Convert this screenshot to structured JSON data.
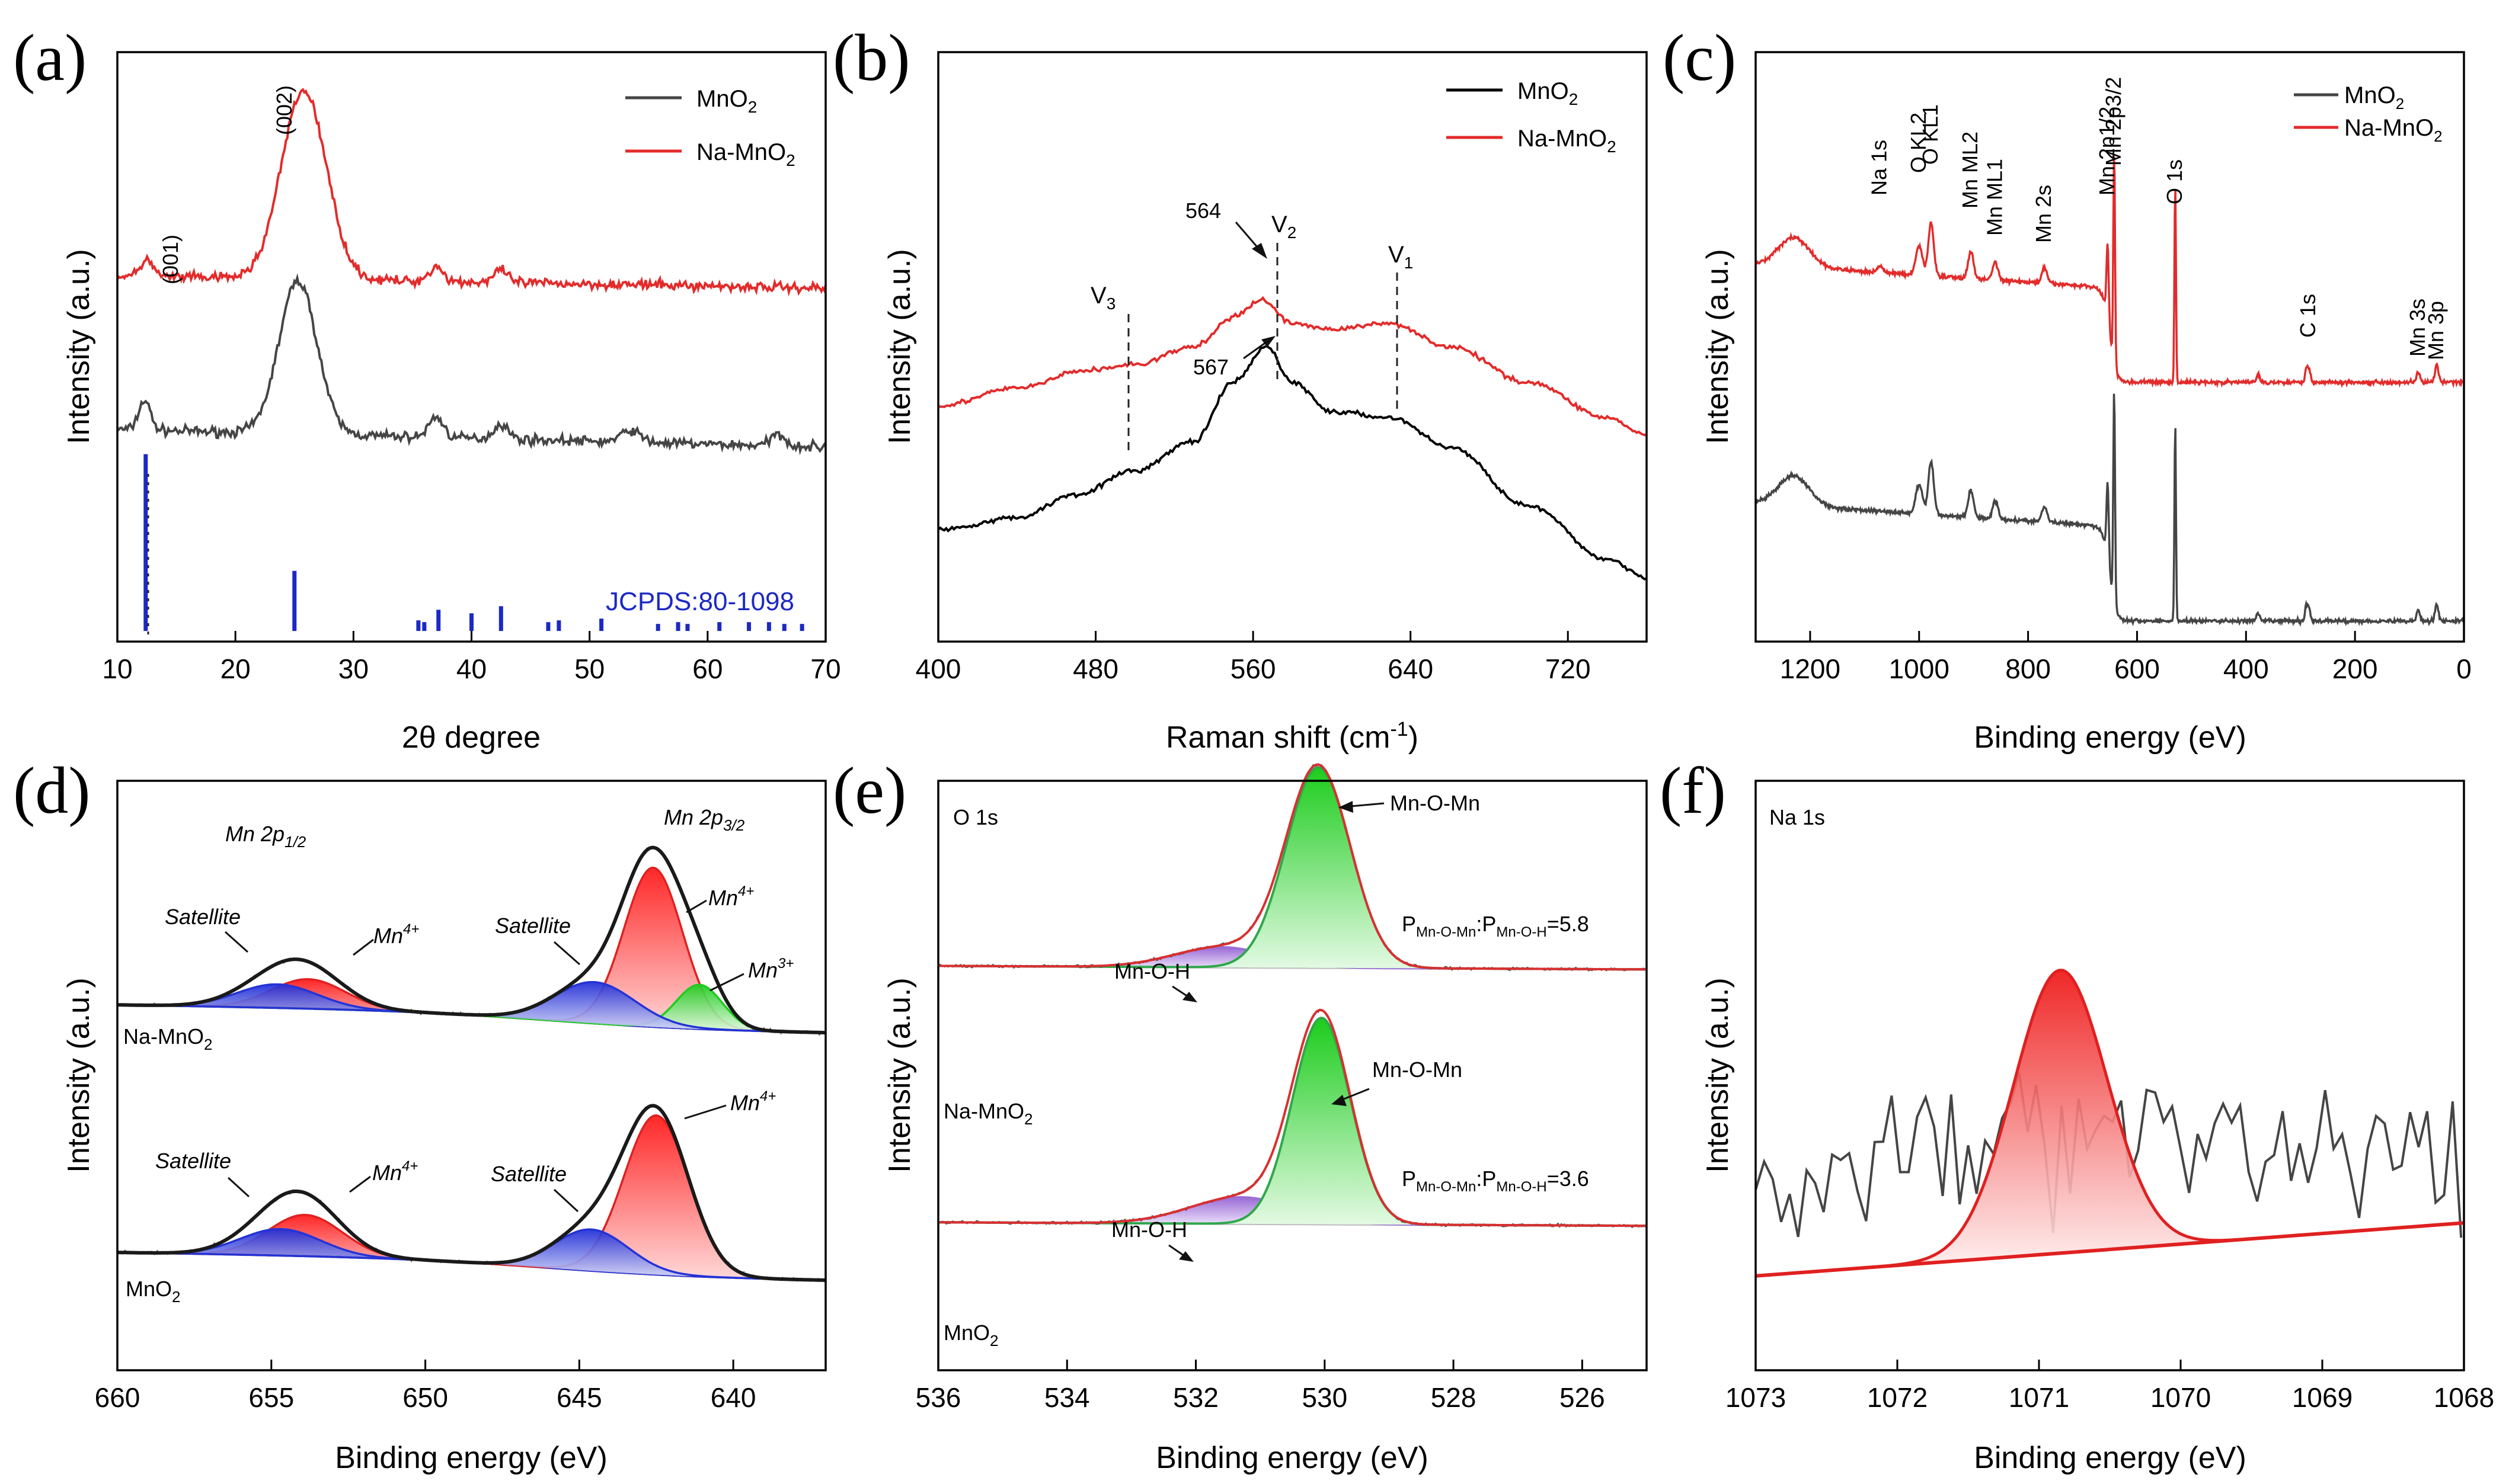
{
  "panel_labels": [
    "(a)",
    "(b)",
    "(c)",
    "(d)",
    "(e)",
    "(f)"
  ],
  "colors": {
    "mno2": "#454545",
    "na_mno2": "#e32b2b",
    "black": "#000000",
    "reference": "#1c29c4",
    "fit_red": "#e02020",
    "fit_blue": "#2433d6",
    "fit_green": "#1fcc1f",
    "fit_purple": "#9b6fd6",
    "envelope": "#1a1a1a"
  },
  "chart_data": [
    {
      "id": "a",
      "type": "line",
      "title": "",
      "xlabel": "2θ degree",
      "ylabel": "Intensity (a.u.)",
      "xlim": [
        10,
        70
      ],
      "xticks": [
        10,
        20,
        30,
        40,
        50,
        60,
        70
      ],
      "legend": {
        "position": "top-right",
        "entries": [
          {
            "base": "MnO",
            "sub": "2",
            "color": "#454545"
          },
          {
            "base": "Na-MnO",
            "sub": "2",
            "color": "#e32b2b"
          }
        ]
      },
      "annotations": [
        "(001)",
        "(002)",
        "JCPDS:80-1098"
      ],
      "series": [
        {
          "name": "MnO2",
          "color": "#454545",
          "baseline": 0.36,
          "noise": 0.012,
          "slope": -0.03,
          "peaks": [
            [
              12.3,
              0.05,
              0.5
            ],
            [
              25.3,
              0.26,
              1.6
            ],
            [
              37,
              0.035,
              0.6
            ],
            [
              42.5,
              0.025,
              0.6
            ],
            [
              53.5,
              0.02,
              0.8
            ],
            [
              66,
              0.02,
              0.6
            ]
          ]
        },
        {
          "name": "Na-MnO2",
          "color": "#e32b2b",
          "baseline": 0.62,
          "noise": 0.012,
          "slope": -0.02,
          "peaks": [
            [
              12.5,
              0.03,
              0.5
            ],
            [
              25.8,
              0.32,
              1.9
            ],
            [
              37,
              0.025,
              0.6
            ],
            [
              42.5,
              0.02,
              0.6
            ]
          ]
        }
      ],
      "reference_sticks": [
        [
          12.4,
          1.0
        ],
        [
          25.0,
          0.34
        ],
        [
          35.5,
          0.06
        ],
        [
          36.0,
          0.05
        ],
        [
          37.2,
          0.12
        ],
        [
          40.0,
          0.1
        ],
        [
          42.5,
          0.14
        ],
        [
          46.5,
          0.05
        ],
        [
          47.4,
          0.06
        ],
        [
          51.0,
          0.07
        ],
        [
          55.8,
          0.04
        ],
        [
          57.5,
          0.05
        ],
        [
          58.3,
          0.04
        ],
        [
          61.0,
          0.05
        ],
        [
          63.5,
          0.05
        ],
        [
          65.2,
          0.05
        ],
        [
          66.5,
          0.04
        ],
        [
          68.0,
          0.04
        ]
      ]
    },
    {
      "id": "b",
      "type": "line",
      "title": "",
      "xlabel": "Raman shift (cm-1)",
      "xlabel_base": "Raman shift (cm",
      "xlabel_sup": "-1",
      "xlabel_end": ")",
      "ylabel": "Intensity (a.u.)",
      "xlim": [
        400,
        760
      ],
      "xticks": [
        400,
        480,
        560,
        640,
        720
      ],
      "legend": {
        "position": "top-right",
        "entries": [
          {
            "base": "MnO",
            "sub": "2",
            "color": "#000000"
          },
          {
            "base": "Na-MnO",
            "sub": "2",
            "color": "#e32b2b"
          }
        ]
      },
      "annotations": {
        "v3": "V3",
        "v2": "V2",
        "v1": "V1",
        "label_564": "564",
        "label_567": "567"
      },
      "band_positions": [
        475,
        567,
        630
      ],
      "series": [
        {
          "name": "MnO2",
          "color": "#000000",
          "points": [
            [
              400,
              0.19
            ],
            [
              440,
              0.21
            ],
            [
              470,
              0.25
            ],
            [
              500,
              0.29
            ],
            [
              530,
              0.34
            ],
            [
              550,
              0.44
            ],
            [
              567,
              0.5
            ],
            [
              580,
              0.44
            ],
            [
              600,
              0.39
            ],
            [
              630,
              0.38
            ],
            [
              660,
              0.33
            ],
            [
              700,
              0.23
            ],
            [
              740,
              0.14
            ],
            [
              760,
              0.11
            ]
          ]
        },
        {
          "name": "Na-MnO2",
          "color": "#e32b2b",
          "points": [
            [
              400,
              0.4
            ],
            [
              440,
              0.43
            ],
            [
              475,
              0.46
            ],
            [
              500,
              0.47
            ],
            [
              530,
              0.5
            ],
            [
              550,
              0.55
            ],
            [
              564,
              0.58
            ],
            [
              580,
              0.54
            ],
            [
              600,
              0.53
            ],
            [
              630,
              0.54
            ],
            [
              660,
              0.5
            ],
            [
              700,
              0.44
            ],
            [
              740,
              0.38
            ],
            [
              760,
              0.35
            ]
          ]
        }
      ]
    },
    {
      "id": "c",
      "type": "line",
      "title": "",
      "xlabel": "Binding energy (eV)",
      "ylabel": "Intensity (a.u.)",
      "xlim": [
        1300,
        0
      ],
      "xticks": [
        1200,
        1000,
        800,
        600,
        400,
        200,
        0
      ],
      "legend": {
        "position": "top-right",
        "entries": [
          {
            "base": "MnO",
            "sub": "2",
            "color": "#454545"
          },
          {
            "base": "Na-MnO",
            "sub": "2",
            "color": "#e32b2b"
          }
        ]
      },
      "peak_labels": [
        [
          "Na 1s",
          1072
        ],
        [
          "O KL2",
          1000
        ],
        [
          "O KL1",
          978
        ],
        [
          "Mn ML2",
          905
        ],
        [
          "Mn ML1",
          860
        ],
        [
          "Mn 2s",
          770
        ],
        [
          "Mn 2p1/2",
          654
        ],
        [
          "Mn 2p3/2",
          642
        ],
        [
          "O 1s",
          530
        ],
        [
          "C 1s",
          285
        ],
        [
          "Mn 3s",
          84
        ],
        [
          "Mn 3p",
          50
        ]
      ],
      "series": [
        {
          "name": "MnO2",
          "color": "#454545"
        },
        {
          "name": "Na-MnO2",
          "color": "#e32b2b"
        }
      ]
    },
    {
      "id": "d",
      "type": "area",
      "title": "",
      "xlabel": "Binding energy (eV)",
      "ylabel": "Intensity (a.u.)",
      "xlim": [
        660,
        637
      ],
      "xticks": [
        660,
        655,
        650,
        645,
        640
      ],
      "annotations": {
        "p12_base": "Mn 2p",
        "p12_sub": "1/2",
        "p32_base": "Mn 2p",
        "p32_sub": "3/2",
        "satellite": "Satellite",
        "mn_base": "Mn",
        "sup4": "4+",
        "sup3": "3+",
        "sample_top_base": "Na-MnO",
        "sample_bottom_base": "MnO",
        "sub2": "2"
      },
      "series": [
        {
          "name": "Na-MnO2",
          "components": [
            {
              "label": "Mn4+ (2p1/2)",
              "center": 653.8,
              "height": 0.05,
              "width": 1.2,
              "color": "red"
            },
            {
              "label": "Satellite (2p1/2)",
              "center": 654.8,
              "height": 0.04,
              "width": 1.3,
              "color": "blue"
            },
            {
              "label": "Mn4+ (2p3/2)",
              "center": 642.6,
              "height": 0.27,
              "width": 0.95,
              "color": "red"
            },
            {
              "label": "Mn3+",
              "center": 641.1,
              "height": 0.075,
              "width": 0.75,
              "color": "green"
            },
            {
              "label": "Satellite (2p3/2)",
              "center": 644.5,
              "height": 0.07,
              "width": 1.3,
              "color": "blue"
            }
          ]
        },
        {
          "name": "MnO2",
          "components": [
            {
              "label": "Mn4+ (2p1/2)",
              "center": 653.9,
              "height": 0.07,
              "width": 1.2,
              "color": "red"
            },
            {
              "label": "Satellite (2p1/2)",
              "center": 654.7,
              "height": 0.045,
              "width": 1.3,
              "color": "blue"
            },
            {
              "label": "Mn4+ (2p3/2)",
              "center": 642.5,
              "height": 0.27,
              "width": 1.05,
              "color": "red"
            },
            {
              "label": "Satellite (2p3/2)",
              "center": 644.6,
              "height": 0.07,
              "width": 1.2,
              "color": "blue"
            }
          ]
        }
      ]
    },
    {
      "id": "e",
      "type": "area",
      "title": "",
      "xlabel": "Binding energy (eV)",
      "ylabel": "Intensity (a.u.)",
      "xlim": [
        536,
        525
      ],
      "xticks": [
        536,
        534,
        532,
        530,
        528,
        526
      ],
      "annotations": {
        "region": "O 1s",
        "mn_o_mn": "Mn-O-Mn",
        "mn_o_h": "Mn-O-H",
        "ratio_prefix": "P",
        "ratio_sub_a": "Mn-O-Mn",
        "ratio_sub_b": "Mn-O-H",
        "ratio_top": "=5.8",
        "ratio_bottom": "=3.6",
        "colon": ":",
        "sample_top_base": "Na-MnO",
        "sample_bottom_base": "MnO",
        "sub2": "2"
      },
      "series": [
        {
          "name": "Na-MnO2",
          "ratio": 5.8,
          "components": [
            {
              "label": "Mn-O-Mn",
              "center": 530.1,
              "height": 0.34,
              "width": 0.5,
              "color": "green"
            },
            {
              "label": "Mn-O-H",
              "center": 531.6,
              "height": 0.034,
              "width": 0.75,
              "color": "purple"
            }
          ]
        },
        {
          "name": "MnO2",
          "ratio": 3.6,
          "components": [
            {
              "label": "Mn-O-Mn",
              "center": 530.05,
              "height": 0.35,
              "width": 0.45,
              "color": "green"
            },
            {
              "label": "Mn-O-H",
              "center": 531.3,
              "height": 0.045,
              "width": 0.8,
              "color": "purple"
            }
          ]
        }
      ]
    },
    {
      "id": "f",
      "type": "line",
      "title": "",
      "xlabel": "Binding energy (eV)",
      "ylabel": "Intensity (a.u.)",
      "xlim": [
        1073,
        1068
      ],
      "xticks": [
        1073,
        1072,
        1071,
        1070,
        1069,
        1068
      ],
      "annotations": {
        "region": "Na 1s"
      },
      "fit": {
        "center": 1070.85,
        "height": 0.48,
        "width": 0.33
      },
      "baseline": [
        [
          1073,
          0.16
        ],
        [
          1068,
          0.25
        ]
      ],
      "raw_data_style": "noisy"
    }
  ]
}
